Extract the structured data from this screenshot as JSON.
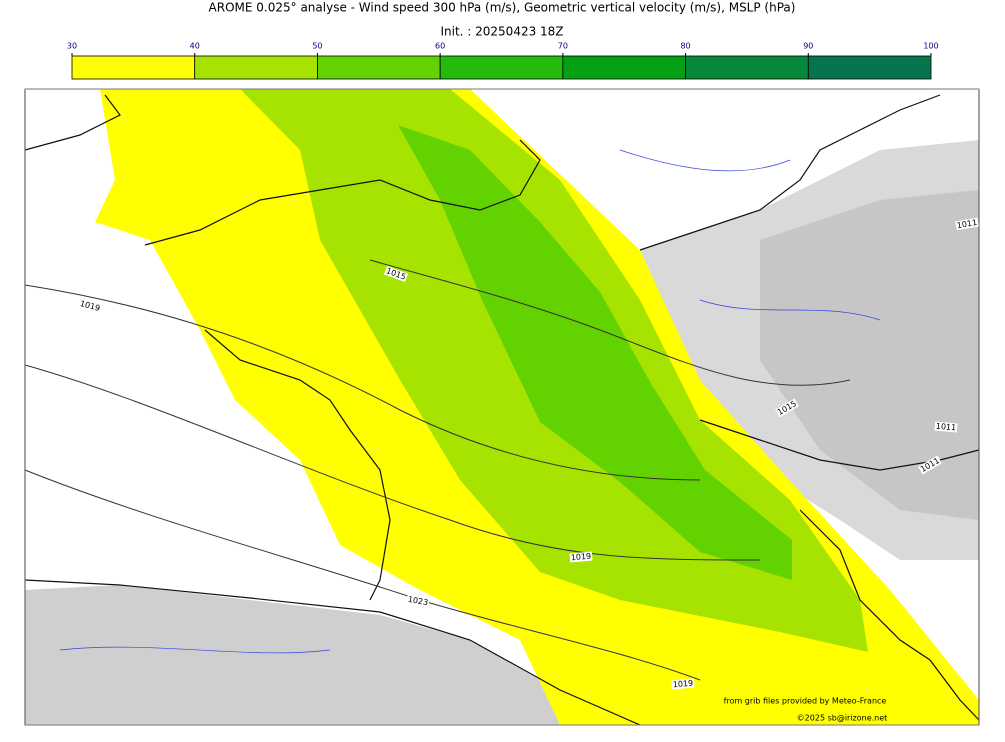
{
  "title": "AROME 0.025° analyse - Wind speed 300 hPa (m/s), Geometric vertical velocity (m/s), MSLP (hPa)",
  "init": "Init. : 20250423 18Z",
  "colorbar": {
    "ticks": [
      30,
      40,
      50,
      60,
      70,
      80,
      90,
      100
    ],
    "colors": [
      "#ffff00",
      "#a7e300",
      "#62d200",
      "#26bb0c",
      "#03a113",
      "#08883a",
      "#06754d"
    ]
  },
  "isobar_labels": [
    1011,
    1015,
    1019,
    1015,
    1011,
    1011,
    1019,
    1023,
    1019
  ],
  "credits": [
    "from grib files provided by Meteo-France",
    "©2025 sb@irizone.net"
  ]
}
